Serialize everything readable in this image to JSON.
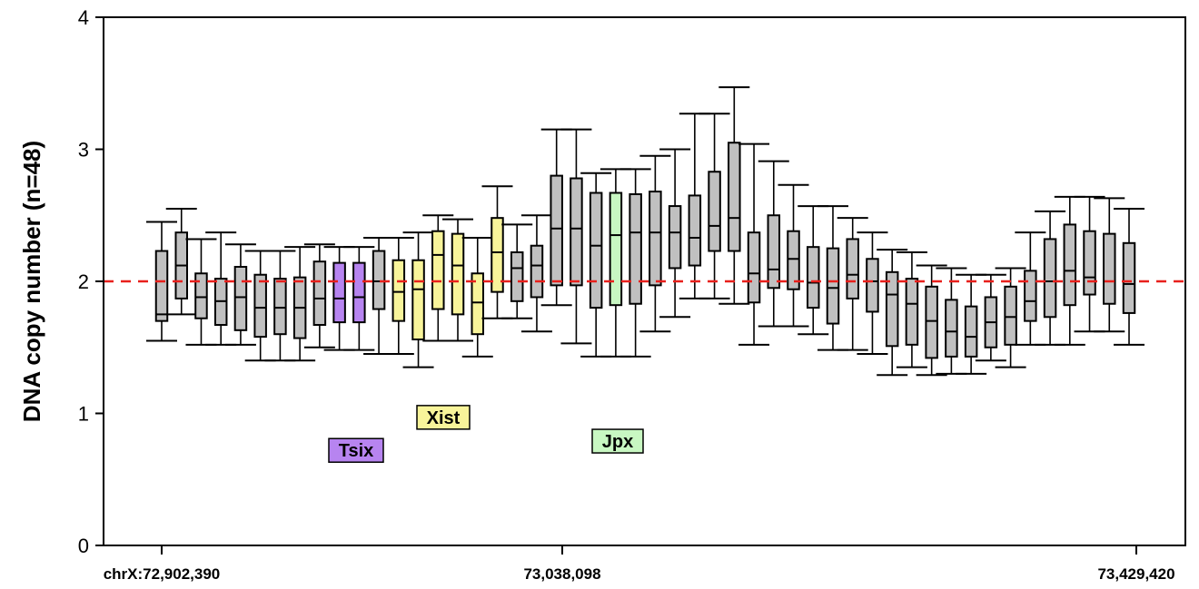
{
  "chart_data": {
    "type": "box",
    "title": "",
    "xlabel": "",
    "ylabel": "DNA copy number (n=48)",
    "ylim": [
      0,
      4
    ],
    "yticks": [
      "0",
      "1",
      "2",
      "3",
      "4"
    ],
    "xticks": [
      "chrX:72,902,390",
      "73,038,098",
      "73,429,420"
    ],
    "reference_line": {
      "value": 2,
      "color": "#e8201c",
      "style": "dashed"
    },
    "colors": {
      "default": "#c0c0c0",
      "Tsix": "#b784f0",
      "Xist": "#f8f49a",
      "Jpx": "#c8f7c2"
    },
    "genes": [
      {
        "name": "Tsix",
        "color": "#b784f0",
        "y": 0.72
      },
      {
        "name": "Xist",
        "color": "#f8f49a",
        "y": 0.97
      },
      {
        "name": "Jpx",
        "color": "#c8f7c2",
        "y": 0.79
      }
    ],
    "boxes": [
      {
        "min": 1.55,
        "q1": 1.7,
        "median": 1.75,
        "q3": 2.23,
        "max": 2.45,
        "gene": ""
      },
      {
        "min": 1.75,
        "q1": 1.87,
        "median": 2.12,
        "q3": 2.37,
        "max": 2.55,
        "gene": ""
      },
      {
        "min": 1.52,
        "q1": 1.72,
        "median": 1.88,
        "q3": 2.06,
        "max": 2.32,
        "gene": ""
      },
      {
        "min": 1.52,
        "q1": 1.67,
        "median": 1.85,
        "q3": 2.02,
        "max": 2.37,
        "gene": ""
      },
      {
        "min": 1.52,
        "q1": 1.63,
        "median": 1.88,
        "q3": 2.11,
        "max": 2.28,
        "gene": ""
      },
      {
        "min": 1.4,
        "q1": 1.58,
        "median": 1.8,
        "q3": 2.05,
        "max": 2.23,
        "gene": ""
      },
      {
        "min": 1.4,
        "q1": 1.6,
        "median": 1.8,
        "q3": 2.02,
        "max": 2.23,
        "gene": ""
      },
      {
        "min": 1.4,
        "q1": 1.57,
        "median": 1.8,
        "q3": 2.03,
        "max": 2.26,
        "gene": ""
      },
      {
        "min": 1.5,
        "q1": 1.67,
        "median": 1.87,
        "q3": 2.15,
        "max": 2.28,
        "gene": ""
      },
      {
        "min": 1.48,
        "q1": 1.69,
        "median": 1.87,
        "q3": 2.14,
        "max": 2.26,
        "gene": "Tsix"
      },
      {
        "min": 1.48,
        "q1": 1.69,
        "median": 1.88,
        "q3": 2.14,
        "max": 2.26,
        "gene": "Tsix"
      },
      {
        "min": 1.45,
        "q1": 1.79,
        "median": 2.0,
        "q3": 2.23,
        "max": 2.33,
        "gene": ""
      },
      {
        "min": 1.45,
        "q1": 1.7,
        "median": 1.92,
        "q3": 2.16,
        "max": 2.33,
        "gene": "Xist"
      },
      {
        "min": 1.35,
        "q1": 1.56,
        "median": 1.94,
        "q3": 2.16,
        "max": 2.37,
        "gene": "Xist"
      },
      {
        "min": 1.55,
        "q1": 1.79,
        "median": 2.2,
        "q3": 2.38,
        "max": 2.5,
        "gene": "Xist"
      },
      {
        "min": 1.55,
        "q1": 1.75,
        "median": 2.12,
        "q3": 2.36,
        "max": 2.47,
        "gene": "Xist"
      },
      {
        "min": 1.43,
        "q1": 1.6,
        "median": 1.84,
        "q3": 2.06,
        "max": 2.33,
        "gene": "Xist"
      },
      {
        "min": 1.72,
        "q1": 1.92,
        "median": 2.22,
        "q3": 2.48,
        "max": 2.72,
        "gene": "Xist"
      },
      {
        "min": 1.72,
        "q1": 1.85,
        "median": 2.1,
        "q3": 2.22,
        "max": 2.43,
        "gene": ""
      },
      {
        "min": 1.62,
        "q1": 1.88,
        "median": 2.12,
        "q3": 2.27,
        "max": 2.5,
        "gene": ""
      },
      {
        "min": 1.82,
        "q1": 1.97,
        "median": 2.4,
        "q3": 2.8,
        "max": 3.15,
        "gene": ""
      },
      {
        "min": 1.53,
        "q1": 1.97,
        "median": 2.4,
        "q3": 2.78,
        "max": 3.15,
        "gene": ""
      },
      {
        "min": 1.43,
        "q1": 1.8,
        "median": 2.27,
        "q3": 2.67,
        "max": 2.82,
        "gene": ""
      },
      {
        "min": 1.43,
        "q1": 1.82,
        "median": 2.35,
        "q3": 2.67,
        "max": 2.85,
        "gene": "Jpx"
      },
      {
        "min": 1.43,
        "q1": 1.83,
        "median": 2.37,
        "q3": 2.66,
        "max": 2.85,
        "gene": ""
      },
      {
        "min": 1.62,
        "q1": 1.97,
        "median": 2.37,
        "q3": 2.68,
        "max": 2.95,
        "gene": ""
      },
      {
        "min": 1.73,
        "q1": 2.1,
        "median": 2.37,
        "q3": 2.57,
        "max": 3.0,
        "gene": ""
      },
      {
        "min": 1.87,
        "q1": 2.12,
        "median": 2.33,
        "q3": 2.65,
        "max": 3.27,
        "gene": ""
      },
      {
        "min": 1.87,
        "q1": 2.23,
        "median": 2.42,
        "q3": 2.83,
        "max": 3.27,
        "gene": ""
      },
      {
        "min": 1.83,
        "q1": 2.23,
        "median": 2.48,
        "q3": 3.05,
        "max": 3.47,
        "gene": ""
      },
      {
        "min": 1.52,
        "q1": 1.84,
        "median": 2.06,
        "q3": 2.37,
        "max": 3.04,
        "gene": ""
      },
      {
        "min": 1.66,
        "q1": 1.95,
        "median": 2.09,
        "q3": 2.5,
        "max": 2.91,
        "gene": ""
      },
      {
        "min": 1.66,
        "q1": 1.94,
        "median": 2.17,
        "q3": 2.38,
        "max": 2.73,
        "gene": ""
      },
      {
        "min": 1.6,
        "q1": 1.8,
        "median": 1.99,
        "q3": 2.26,
        "max": 2.57,
        "gene": ""
      },
      {
        "min": 1.48,
        "q1": 1.68,
        "median": 1.95,
        "q3": 2.25,
        "max": 2.57,
        "gene": ""
      },
      {
        "min": 1.48,
        "q1": 1.87,
        "median": 2.05,
        "q3": 2.32,
        "max": 2.48,
        "gene": ""
      },
      {
        "min": 1.45,
        "q1": 1.77,
        "median": 2.0,
        "q3": 2.17,
        "max": 2.37,
        "gene": ""
      },
      {
        "min": 1.29,
        "q1": 1.51,
        "median": 1.9,
        "q3": 2.07,
        "max": 2.24,
        "gene": ""
      },
      {
        "min": 1.35,
        "q1": 1.52,
        "median": 1.83,
        "q3": 2.02,
        "max": 2.22,
        "gene": ""
      },
      {
        "min": 1.29,
        "q1": 1.42,
        "median": 1.7,
        "q3": 1.96,
        "max": 2.12,
        "gene": ""
      },
      {
        "min": 1.3,
        "q1": 1.43,
        "median": 1.62,
        "q3": 1.86,
        "max": 2.1,
        "gene": ""
      },
      {
        "min": 1.3,
        "q1": 1.43,
        "median": 1.58,
        "q3": 1.81,
        "max": 2.05,
        "gene": ""
      },
      {
        "min": 1.4,
        "q1": 1.5,
        "median": 1.69,
        "q3": 1.88,
        "max": 2.05,
        "gene": ""
      },
      {
        "min": 1.35,
        "q1": 1.52,
        "median": 1.73,
        "q3": 1.96,
        "max": 2.1,
        "gene": ""
      },
      {
        "min": 1.52,
        "q1": 1.7,
        "median": 1.85,
        "q3": 2.08,
        "max": 2.37,
        "gene": ""
      },
      {
        "min": 1.52,
        "q1": 1.73,
        "median": 2.0,
        "q3": 2.32,
        "max": 2.53,
        "gene": ""
      },
      {
        "min": 1.52,
        "q1": 1.82,
        "median": 2.08,
        "q3": 2.43,
        "max": 2.64,
        "gene": ""
      },
      {
        "min": 1.62,
        "q1": 1.9,
        "median": 2.03,
        "q3": 2.38,
        "max": 2.64,
        "gene": ""
      },
      {
        "min": 1.62,
        "q1": 1.83,
        "median": 2.0,
        "q3": 2.36,
        "max": 2.63,
        "gene": ""
      },
      {
        "min": 1.52,
        "q1": 1.76,
        "median": 1.98,
        "q3": 2.29,
        "max": 2.55,
        "gene": ""
      }
    ]
  }
}
